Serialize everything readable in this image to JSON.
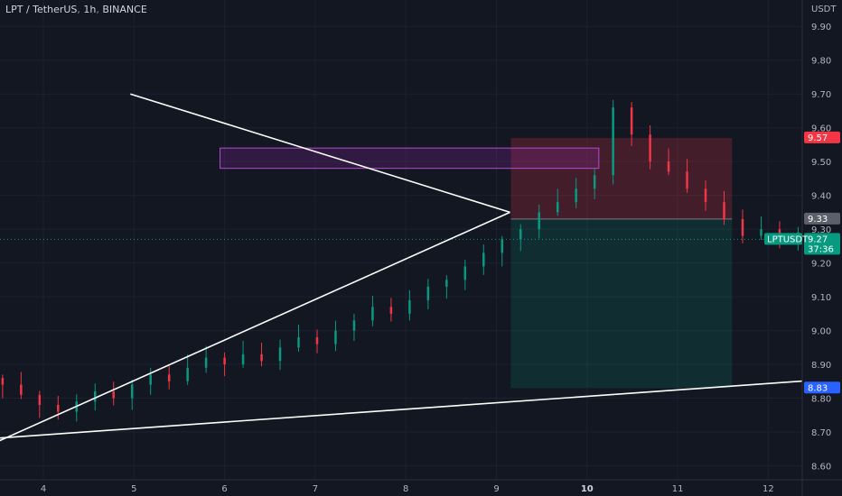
{
  "header": {
    "symbol": "LPT / TetherUS",
    "interval": "1h",
    "exchange": "BINANCE"
  },
  "chart_data": {
    "type": "candlestick",
    "y_unit": "USDT",
    "ylim": [
      8.58,
      9.93
    ],
    "y_ticks": [
      "9.90",
      "9.80",
      "9.70",
      "9.60",
      "9.50",
      "9.40",
      "9.30",
      "9.20",
      "9.10",
      "9.00",
      "8.90",
      "8.80",
      "8.70",
      "8.60"
    ],
    "x_ticks": [
      {
        "label": "4",
        "day": 4,
        "bold": false
      },
      {
        "label": "5",
        "day": 5,
        "bold": false
      },
      {
        "label": "6",
        "day": 6,
        "bold": false
      },
      {
        "label": "7",
        "day": 7,
        "bold": false
      },
      {
        "label": "8",
        "day": 8,
        "bold": false
      },
      {
        "label": "9",
        "day": 9,
        "bold": false
      },
      {
        "label": "10",
        "day": 10,
        "bold": true
      },
      {
        "label": "11",
        "day": 11,
        "bold": false
      },
      {
        "label": "12",
        "day": 12,
        "bold": false
      }
    ],
    "xlim": [
      3.55,
      13.4
    ],
    "candles_start_day": 3.55,
    "candles_per_day": 24,
    "closes": [
      8.84,
      8.81,
      8.78,
      8.76,
      8.79,
      8.82,
      8.8,
      8.84,
      8.87,
      8.85,
      8.89,
      8.92,
      8.9,
      8.93,
      8.91,
      8.95,
      8.98,
      8.96,
      9.0,
      9.03,
      9.07,
      9.05,
      9.09,
      9.13,
      9.15,
      9.19,
      9.23,
      9.27,
      9.3,
      9.35,
      9.38,
      9.42,
      9.46,
      9.66,
      9.58,
      9.5,
      9.47,
      9.42,
      9.38,
      9.33,
      9.28,
      9.3,
      9.27,
      9.29,
      9.31,
      9.24,
      9.22,
      9.2,
      9.19,
      9.21,
      9.17,
      9.14,
      9.07,
      9.02,
      8.99,
      8.97,
      8.95,
      8.98,
      9.01,
      9.05,
      9.09,
      9.13,
      9.17,
      9.22,
      9.27,
      9.32,
      9.37,
      9.43,
      9.47,
      9.45,
      9.4,
      9.35,
      9.33,
      9.37,
      9.34,
      9.38,
      9.42,
      9.45,
      9.48,
      9.44,
      9.4,
      9.36,
      9.39,
      9.36,
      9.41,
      9.44,
      9.46,
      9.43,
      9.45,
      9.47,
      9.45,
      9.42,
      9.4,
      9.38,
      9.34,
      9.31,
      9.28,
      9.25,
      9.22,
      9.2,
      9.19,
      9.23,
      9.25,
      9.27,
      9.29,
      9.31,
      9.33,
      9.31,
      9.34,
      9.36,
      9.38,
      9.36,
      9.35,
      9.37,
      9.34,
      9.32,
      9.29,
      9.27
    ],
    "levels": {
      "current_price": {
        "label": "LPTUSDT",
        "value": "9.27",
        "value_num": 9.27,
        "countdown": "37:36",
        "color": "#089981"
      },
      "target_price": {
        "value": "9.57",
        "value_num": 9.57,
        "color": "#f23645"
      },
      "entry_price": {
        "value": "9.33",
        "value_num": 9.33,
        "color": "#5d606b"
      },
      "support_price": {
        "value": "8.83",
        "value_num": 8.83,
        "color": "#2962ff"
      }
    },
    "drawings": {
      "upper_trendline": [
        [
          4.96,
          9.7
        ],
        [
          9.15,
          9.35
        ]
      ],
      "lower_trendline": [
        [
          3.4,
          8.66
        ],
        [
          9.15,
          9.35
        ]
      ],
      "long_trendline": [
        [
          3.4,
          8.68
        ],
        [
          13.4,
          8.87
        ]
      ],
      "resistance_zone": {
        "x": [
          5.95,
          10.13
        ],
        "y": [
          9.48,
          9.54
        ],
        "color": "#9c27b0"
      },
      "risk_zone": {
        "x": [
          9.16,
          11.6
        ],
        "y": [
          9.33,
          9.57
        ],
        "color": "#f23645"
      },
      "reward_zone": {
        "x": [
          9.16,
          11.6
        ],
        "y": [
          8.83,
          9.33
        ],
        "color": "#089981"
      }
    }
  }
}
